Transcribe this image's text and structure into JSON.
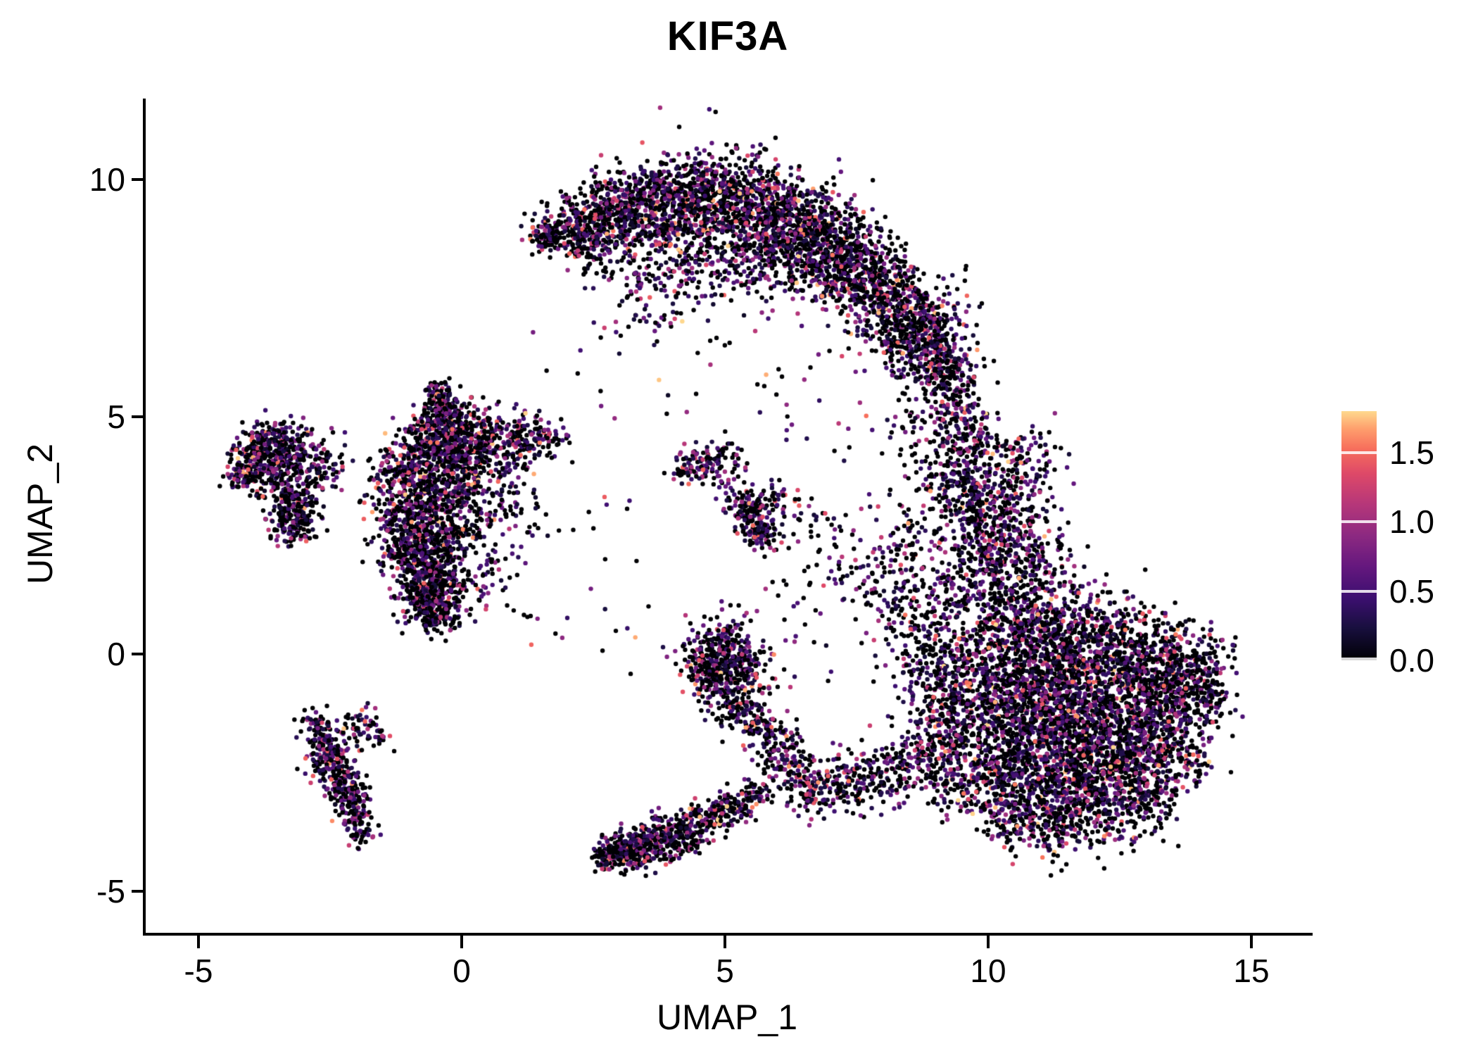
{
  "title": "KIF3A",
  "axes": {
    "x": {
      "label": "UMAP_1",
      "ticks": [
        "-5",
        "0",
        "5",
        "10",
        "15"
      ],
      "tick_values": [
        -5,
        0,
        5,
        10,
        15
      ],
      "range": [
        -6.0,
        16.1
      ]
    },
    "y": {
      "label": "UMAP_2",
      "ticks": [
        "10",
        "5",
        "0",
        "-5"
      ],
      "tick_values": [
        10,
        5,
        0,
        -5
      ],
      "range": [
        -5.9,
        11.7
      ]
    }
  },
  "legend": {
    "ticks": [
      "1.5",
      "1.0",
      "0.5",
      "0.0"
    ],
    "tick_values": [
      1.5,
      1.0,
      0.5,
      0.0
    ],
    "min": 0.0,
    "max": 1.8
  },
  "chart_data": {
    "type": "scatter",
    "title": "KIF3A",
    "xlabel": "UMAP_1",
    "ylabel": "UMAP_2",
    "xlim": [
      -6.0,
      16.1
    ],
    "ylim": [
      -5.9,
      11.7
    ],
    "grid": false,
    "legend_position": "right",
    "seed": 20,
    "point_radius_px": 3.2,
    "colorbar": {
      "max": 1.8,
      "palette": "magma",
      "stops": [
        {
          "t": 0.0,
          "rgb": [
            0,
            0,
            4
          ]
        },
        {
          "t": 0.13,
          "rgb": [
            24,
            15,
            62
          ]
        },
        {
          "t": 0.25,
          "rgb": [
            60,
            15,
            112
          ]
        },
        {
          "t": 0.38,
          "rgb": [
            102,
            24,
            126
          ]
        },
        {
          "t": 0.5,
          "rgb": [
            140,
            41,
            129
          ]
        },
        {
          "t": 0.63,
          "rgb": [
            183,
            55,
            121
          ]
        },
        {
          "t": 0.75,
          "rgb": [
            222,
            73,
            104
          ]
        },
        {
          "t": 0.85,
          "rgb": [
            247,
            111,
            92
          ]
        },
        {
          "t": 0.93,
          "rgb": [
            254,
            159,
            109
          ]
        },
        {
          "t": 1.0,
          "rgb": [
            254,
            217,
            142
          ]
        }
      ]
    },
    "expression": {
      "zero_fraction": 0.5,
      "bands": [
        {
          "p": 0.27,
          "range": [
            0.12,
            0.55
          ]
        },
        {
          "p": 0.15,
          "range": [
            0.55,
            1.05
          ]
        },
        {
          "p": 0.06,
          "range": [
            1.05,
            1.5
          ]
        },
        {
          "p": 0.02,
          "range": [
            1.5,
            1.8
          ]
        }
      ]
    },
    "clusters": [
      {
        "name": "top-crescent",
        "blobs": [
          [
            1.65,
            8.8,
            0.18,
            100
          ],
          [
            2.2,
            9.0,
            0.3,
            180
          ],
          [
            2.9,
            9.3,
            0.4,
            300
          ],
          [
            3.8,
            9.5,
            0.5,
            400
          ],
          [
            4.8,
            9.55,
            0.55,
            440
          ],
          [
            5.7,
            9.25,
            0.55,
            440
          ],
          [
            6.5,
            8.85,
            0.55,
            420
          ],
          [
            7.2,
            8.35,
            0.5,
            380
          ],
          [
            7.9,
            7.7,
            0.5,
            350
          ],
          [
            8.5,
            7.05,
            0.45,
            300
          ],
          [
            8.9,
            6.4,
            0.4,
            240
          ],
          [
            9.15,
            5.8,
            0.32,
            140
          ],
          [
            2.6,
            8.5,
            0.3,
            60
          ],
          [
            3.3,
            8.05,
            0.4,
            50
          ],
          [
            4.1,
            8.55,
            0.5,
            90
          ],
          [
            5.0,
            8.2,
            0.5,
            60
          ],
          [
            5.7,
            7.9,
            0.45,
            50
          ],
          [
            3.6,
            7.2,
            0.35,
            25
          ],
          [
            4.4,
            7.6,
            0.4,
            30
          ]
        ]
      },
      {
        "name": "right-stream",
        "blobs": [
          [
            9.4,
            5.1,
            0.3,
            90
          ],
          [
            9.65,
            4.4,
            0.3,
            90
          ],
          [
            9.3,
            3.7,
            0.35,
            110
          ],
          [
            9.7,
            3.0,
            0.4,
            120
          ],
          [
            10.0,
            2.3,
            0.45,
            140
          ],
          [
            9.7,
            1.6,
            0.5,
            150
          ],
          [
            10.3,
            3.6,
            0.5,
            130
          ],
          [
            10.6,
            2.7,
            0.45,
            120
          ],
          [
            10.8,
            4.3,
            0.35,
            70
          ],
          [
            8.75,
            4.65,
            0.3,
            40
          ],
          [
            8.45,
            2.45,
            0.35,
            50
          ],
          [
            8.1,
            1.6,
            0.4,
            60
          ],
          [
            8.6,
            0.9,
            0.45,
            80
          ],
          [
            8.95,
            0.2,
            0.4,
            70
          ],
          [
            10.9,
            1.9,
            0.4,
            90
          ],
          [
            10.4,
            1.1,
            0.45,
            110
          ]
        ]
      },
      {
        "name": "bottom-right-mass",
        "blobs": [
          [
            10.5,
            0.5,
            0.6,
            260
          ],
          [
            11.4,
            0.4,
            0.6,
            280
          ],
          [
            12.3,
            0.2,
            0.55,
            260
          ],
          [
            13.1,
            -0.2,
            0.5,
            220
          ],
          [
            13.7,
            -0.7,
            0.4,
            170
          ],
          [
            14.0,
            0.0,
            0.3,
            90
          ],
          [
            9.9,
            -0.3,
            0.55,
            200
          ],
          [
            10.8,
            -0.5,
            0.6,
            280
          ],
          [
            11.8,
            -0.7,
            0.6,
            280
          ],
          [
            12.7,
            -1.0,
            0.55,
            240
          ],
          [
            13.5,
            -1.4,
            0.45,
            180
          ],
          [
            10.3,
            -1.3,
            0.6,
            260
          ],
          [
            11.2,
            -1.5,
            0.6,
            280
          ],
          [
            12.2,
            -1.7,
            0.55,
            260
          ],
          [
            13.0,
            -2.0,
            0.5,
            200
          ],
          [
            10.7,
            -2.3,
            0.55,
            240
          ],
          [
            11.6,
            -2.5,
            0.5,
            220
          ],
          [
            12.5,
            -2.7,
            0.45,
            180
          ],
          [
            11.1,
            -3.2,
            0.45,
            160
          ],
          [
            12.0,
            -3.3,
            0.4,
            140
          ],
          [
            12.9,
            -3.1,
            0.35,
            110
          ],
          [
            13.6,
            -2.3,
            0.35,
            90
          ],
          [
            10.2,
            -3.0,
            0.4,
            120
          ],
          [
            9.6,
            -2.5,
            0.45,
            140
          ],
          [
            9.0,
            -2.0,
            0.45,
            130
          ],
          [
            9.4,
            -1.2,
            0.5,
            150
          ],
          [
            9.0,
            -0.5,
            0.45,
            110
          ],
          [
            8.4,
            -2.4,
            0.4,
            100
          ],
          [
            7.8,
            -2.6,
            0.35,
            85
          ],
          [
            7.2,
            -2.8,
            0.3,
            75
          ],
          [
            6.7,
            -3.0,
            0.25,
            55
          ],
          [
            10.4,
            -3.6,
            0.3,
            70
          ],
          [
            11.3,
            -3.8,
            0.25,
            50
          ],
          [
            14.2,
            -0.9,
            0.25,
            60
          ]
        ]
      },
      {
        "name": "central-lower-strands",
        "blobs": [
          [
            5.0,
            0.0,
            0.35,
            190
          ],
          [
            5.45,
            -0.35,
            0.3,
            120
          ],
          [
            4.75,
            -0.55,
            0.25,
            80
          ],
          [
            5.15,
            -1.0,
            0.25,
            70
          ],
          [
            5.5,
            -1.4,
            0.25,
            70
          ],
          [
            5.85,
            -1.8,
            0.25,
            70
          ],
          [
            6.15,
            -2.2,
            0.25,
            70
          ],
          [
            6.45,
            -2.6,
            0.25,
            70
          ],
          [
            3.0,
            -4.2,
            0.2,
            110
          ],
          [
            3.4,
            -4.05,
            0.25,
            140
          ],
          [
            3.85,
            -3.9,
            0.25,
            130
          ],
          [
            4.3,
            -3.7,
            0.22,
            100
          ],
          [
            4.7,
            -3.5,
            0.2,
            80
          ],
          [
            5.1,
            -3.25,
            0.2,
            70
          ],
          [
            5.5,
            -3.0,
            0.2,
            60
          ],
          [
            2.8,
            -4.3,
            0.15,
            60
          ],
          [
            4.6,
            -0.1,
            0.3,
            90
          ]
        ]
      },
      {
        "name": "mid-small-clusters",
        "blobs": [
          [
            4.5,
            4.0,
            0.18,
            50
          ],
          [
            4.9,
            4.05,
            0.22,
            70
          ],
          [
            4.2,
            3.85,
            0.12,
            25
          ],
          [
            5.35,
            3.2,
            0.2,
            70
          ],
          [
            5.55,
            2.85,
            0.2,
            80
          ],
          [
            5.72,
            2.5,
            0.2,
            70
          ],
          [
            6.0,
            3.35,
            0.15,
            25
          ],
          [
            6.6,
            3.0,
            0.3,
            22
          ],
          [
            7.1,
            2.4,
            0.3,
            18
          ]
        ]
      },
      {
        "name": "left-center-group",
        "blobs": [
          [
            -0.4,
            5.5,
            0.12,
            50
          ],
          [
            -0.35,
            5.1,
            0.15,
            60
          ],
          [
            -0.3,
            4.8,
            0.3,
            190
          ],
          [
            0.1,
            4.5,
            0.35,
            170
          ],
          [
            0.6,
            4.4,
            0.35,
            130
          ],
          [
            1.2,
            4.5,
            0.3,
            100
          ],
          [
            1.6,
            4.55,
            0.2,
            50
          ],
          [
            -0.7,
            4.3,
            0.35,
            170
          ],
          [
            -0.2,
            3.9,
            0.4,
            170
          ],
          [
            -0.9,
            3.6,
            0.35,
            150
          ],
          [
            -0.4,
            3.2,
            0.35,
            150
          ],
          [
            0.3,
            3.4,
            0.45,
            90
          ],
          [
            0.8,
            3.0,
            0.4,
            60
          ],
          [
            -1.0,
            2.8,
            0.3,
            130
          ],
          [
            -0.5,
            2.5,
            0.3,
            140
          ],
          [
            -1.1,
            2.2,
            0.25,
            110
          ],
          [
            -0.7,
            1.9,
            0.28,
            160
          ],
          [
            -0.5,
            1.5,
            0.28,
            160
          ],
          [
            -0.7,
            1.1,
            0.25,
            150
          ],
          [
            -0.45,
            0.8,
            0.22,
            100
          ],
          [
            0.1,
            2.1,
            0.4,
            60
          ],
          [
            0.4,
            1.5,
            0.35,
            45
          ],
          [
            -1.4,
            3.3,
            0.3,
            55
          ],
          [
            -1.3,
            4.0,
            0.25,
            50
          ]
        ]
      },
      {
        "name": "far-left-group",
        "blobs": [
          [
            -3.7,
            4.4,
            0.3,
            170
          ],
          [
            -3.2,
            4.3,
            0.3,
            140
          ],
          [
            -4.0,
            4.05,
            0.25,
            100
          ],
          [
            -3.4,
            3.8,
            0.3,
            120
          ],
          [
            -3.2,
            3.3,
            0.25,
            110
          ],
          [
            -3.1,
            2.9,
            0.22,
            90
          ],
          [
            -3.25,
            2.6,
            0.18,
            60
          ],
          [
            -2.6,
            3.95,
            0.2,
            55
          ],
          [
            -4.2,
            3.75,
            0.15,
            40
          ]
        ]
      },
      {
        "name": "lower-left-strand",
        "blobs": [
          [
            -2.75,
            -1.45,
            0.15,
            45
          ],
          [
            -2.6,
            -1.85,
            0.2,
            85
          ],
          [
            -2.45,
            -2.25,
            0.2,
            95
          ],
          [
            -2.25,
            -2.65,
            0.2,
            85
          ],
          [
            -2.1,
            -3.05,
            0.18,
            75
          ],
          [
            -2.0,
            -3.45,
            0.15,
            55
          ],
          [
            -1.9,
            -3.8,
            0.12,
            40
          ],
          [
            -1.95,
            -1.55,
            0.2,
            45
          ],
          [
            -1.6,
            -1.7,
            0.12,
            20
          ]
        ]
      },
      {
        "name": "sparse-background",
        "blobs": [
          [
            3.5,
            6.6,
            1.0,
            30
          ],
          [
            6.3,
            5.2,
            0.9,
            25
          ],
          [
            2.1,
            2.6,
            1.0,
            20
          ],
          [
            7.4,
            0.6,
            0.7,
            35
          ],
          [
            6.9,
            1.6,
            0.55,
            25
          ],
          [
            2.4,
            0.5,
            0.8,
            15
          ],
          [
            7.8,
            4.2,
            0.6,
            18
          ]
        ]
      }
    ]
  }
}
